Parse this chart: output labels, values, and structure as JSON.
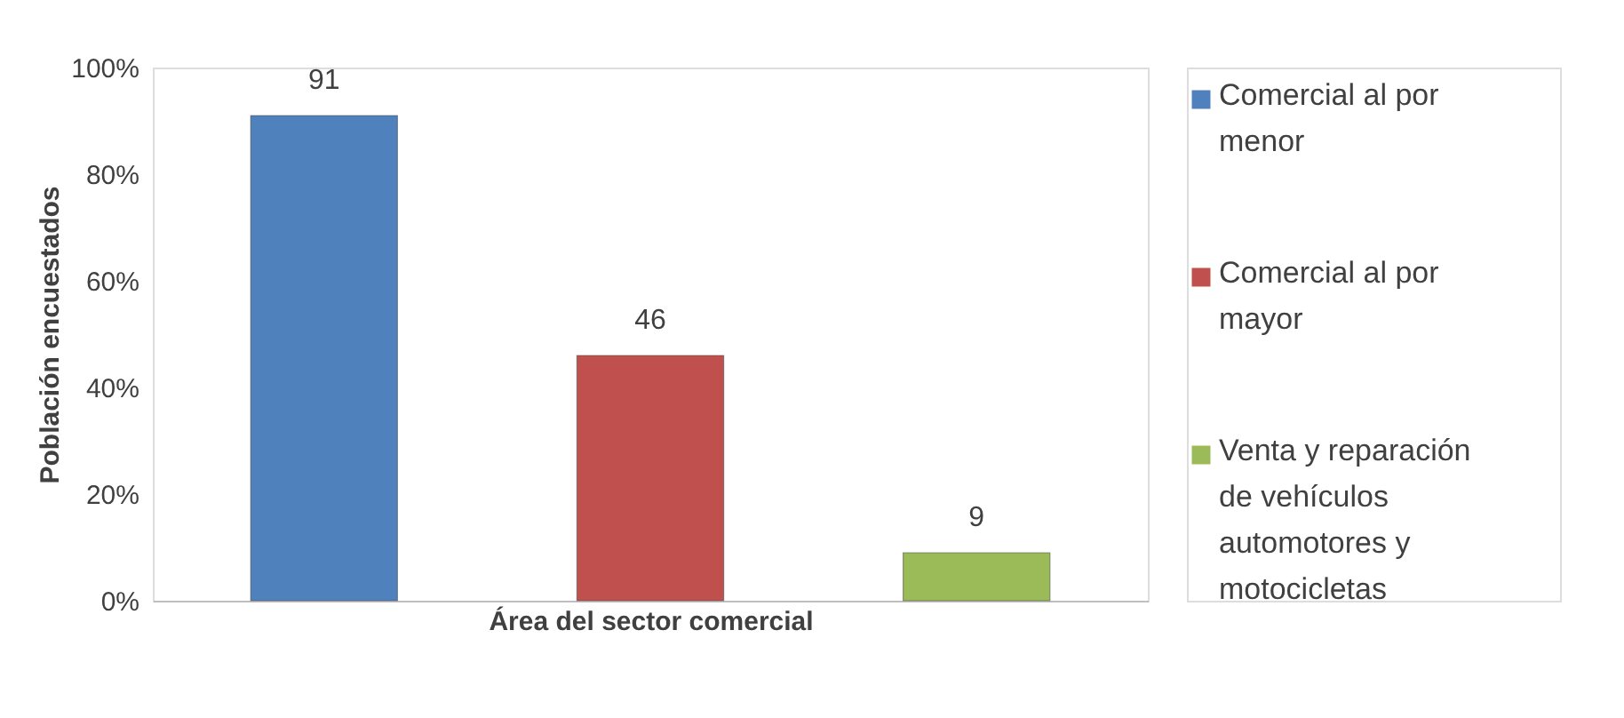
{
  "chart_data": {
    "type": "bar",
    "xlabel": "Área del sector comercial",
    "ylabel": "Población encuestados",
    "categories": [
      null,
      null,
      null
    ],
    "series": [
      {
        "name": "Comercial al por menor",
        "color": "#4f81bd",
        "values": [
          91,
          null,
          null
        ]
      },
      {
        "name": "Comercial al por mayor",
        "color": "#c0504d",
        "values": [
          null,
          46,
          null
        ]
      },
      {
        "name": "Venta y reparación de vehículos automotores y motocicletas",
        "color": "#9bbb59",
        "values": [
          null,
          null,
          9
        ]
      }
    ],
    "ylim": [
      0,
      100
    ],
    "yticks": [
      {
        "value": 0,
        "label": "0%"
      },
      {
        "value": 20,
        "label": "20%"
      },
      {
        "value": 40,
        "label": "40%"
      },
      {
        "value": 60,
        "label": "60%"
      },
      {
        "value": 80,
        "label": "80%"
      },
      {
        "value": 100,
        "label": "100%"
      }
    ],
    "data_labels": true,
    "grid": false,
    "legend": "right",
    "tick_labels": "y"
  }
}
